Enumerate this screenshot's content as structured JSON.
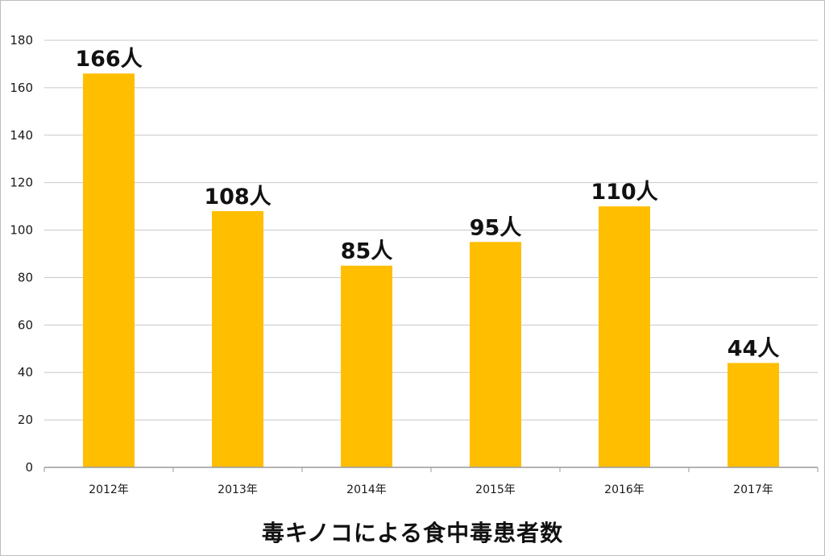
{
  "chart_data": {
    "type": "bar",
    "title": "毒キノコによる食中毒患者数",
    "xlabel": "",
    "ylabel": "",
    "categories": [
      "2012年",
      "2013年",
      "2014年",
      "2015年",
      "2016年",
      "2017年"
    ],
    "values": [
      166,
      108,
      85,
      95,
      110,
      44
    ],
    "data_labels": [
      "166人",
      "108人",
      "85人",
      "95人",
      "110人",
      "44人"
    ],
    "ylim": [
      0,
      180
    ],
    "yticks": [
      0,
      20,
      40,
      60,
      80,
      100,
      120,
      140,
      160,
      180
    ],
    "grid": true,
    "bar_color": "#FFBE00",
    "grid_color": "#c8c8c8",
    "axis_color": "#9a9a9a"
  }
}
